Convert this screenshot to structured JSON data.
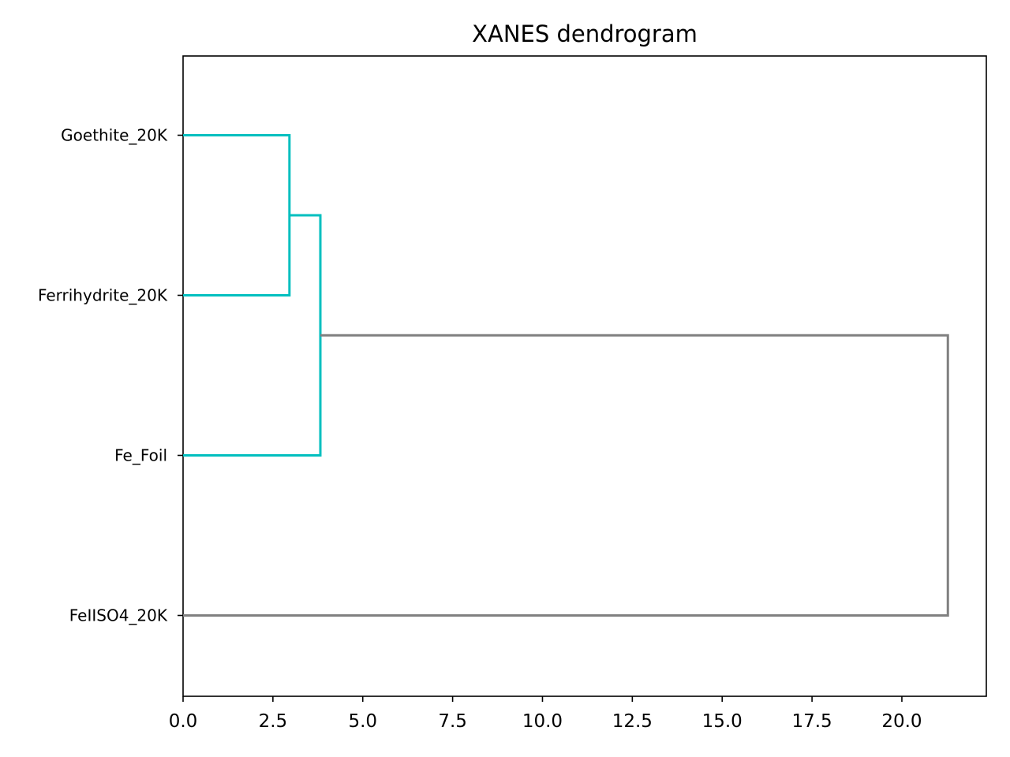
{
  "chart_data": {
    "type": "dendrogram",
    "orientation": "horizontal",
    "title": "XANES dendrogram",
    "xlabel": "",
    "ylabel": "",
    "xlim": [
      0,
      22.35
    ],
    "xticks": [
      "0.0",
      "2.5",
      "5.0",
      "7.5",
      "10.0",
      "12.5",
      "15.0",
      "17.5",
      "20.0"
    ],
    "grid": false,
    "leaves": [
      "Goethite_20K",
      "Ferrihydrite_20K",
      "Fe_Foil",
      "FeIISO4_20K"
    ],
    "links": [
      {
        "children": [
          "Goethite_20K",
          "Ferrihydrite_20K"
        ],
        "distance": 2.96,
        "color": "#00bfbf"
      },
      {
        "children": [
          "Goethite_20K+Ferrihydrite_20K",
          "Fe_Foil"
        ],
        "distance": 3.82,
        "color": "#00bfbf"
      },
      {
        "children": [
          "Goethite_20K+Ferrihydrite_20K+Fe_Foil",
          "FeIISO4_20K"
        ],
        "distance": 21.28,
        "color": "#808080"
      }
    ],
    "colors": {
      "cluster": "#00bfbf",
      "above_threshold": "#808080"
    }
  }
}
